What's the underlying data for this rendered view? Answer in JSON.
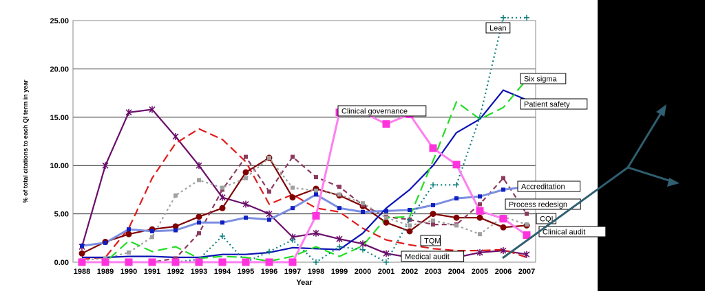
{
  "chart_data": {
    "type": "line",
    "title": "",
    "xlabel": "Year",
    "ylabel": "% of total citations to each QI term in year",
    "x": [
      1988,
      1989,
      1990,
      1991,
      1992,
      1993,
      1994,
      1995,
      1996,
      1997,
      1998,
      1999,
      2000,
      2001,
      2002,
      2003,
      2004,
      2005,
      2006,
      2007
    ],
    "ylim": [
      0,
      25
    ],
    "yticks": [
      "0.00",
      "5.00",
      "10.00",
      "15.00",
      "20.00",
      "25.00"
    ],
    "grid": true,
    "series": [
      {
        "name": "Medical audit",
        "color": "#6a0d6a",
        "dash": "",
        "marker": "star",
        "values": [
          1.6,
          10.0,
          15.5,
          15.8,
          13.0,
          10.0,
          6.7,
          6.0,
          5.0,
          2.6,
          3.0,
          2.4,
          1.9,
          0.9,
          0.5,
          0.5,
          0.5,
          1.0,
          1.2,
          0.8
        ]
      },
      {
        "name": "TQM",
        "color": "#e01a1a",
        "dash": "12,6",
        "marker": "none",
        "values": [
          0.3,
          0.5,
          3.5,
          8.7,
          12.3,
          13.8,
          12.7,
          10.4,
          6.0,
          7.0,
          5.6,
          5.2,
          3.5,
          2.3,
          1.8,
          1.4,
          1.2,
          1.2,
          1.3,
          0.5
        ]
      },
      {
        "name": "Clinical audit",
        "color": "#800000",
        "dash": "",
        "marker": "circle",
        "values": [
          0.9,
          2.1,
          2.9,
          3.4,
          3.7,
          4.7,
          5.6,
          9.3,
          10.8,
          6.7,
          7.6,
          6.9,
          5.8,
          4.1,
          3.2,
          5.0,
          4.6,
          4.6,
          3.6,
          3.8
        ]
      },
      {
        "name": "CQI",
        "color": "#8b3a5e",
        "dash": "7,5",
        "marker": "square-small",
        "values": [
          0.0,
          0.0,
          0.0,
          0.0,
          0.4,
          3.0,
          7.5,
          10.9,
          7.3,
          10.9,
          8.8,
          7.8,
          5.9,
          4.7,
          4.4,
          3.9,
          3.9,
          6.0,
          8.7,
          5.0
        ]
      },
      {
        "name": "Process redesign",
        "color": "#a0a0a0",
        "dash": "3,4",
        "marker": "square-small",
        "values": [
          0.2,
          0.4,
          1.0,
          2.6,
          6.9,
          8.5,
          7.7,
          8.7,
          10.8,
          7.7,
          7.4,
          7.0,
          6.1,
          4.6,
          3.8,
          4.3,
          3.8,
          2.9,
          4.7,
          3.9
        ]
      },
      {
        "name": "Accreditation",
        "color": "#7b8ee0",
        "dash": "",
        "marker": "square",
        "values": [
          1.7,
          2.0,
          3.4,
          3.2,
          3.3,
          4.1,
          4.1,
          4.6,
          4.4,
          5.6,
          7.0,
          5.6,
          5.2,
          5.3,
          5.4,
          5.9,
          6.6,
          6.8,
          7.5,
          7.8
        ]
      },
      {
        "name": "Patient safety",
        "color": "#0a12b4",
        "dash": "",
        "marker": "none",
        "values": [
          0.5,
          0.5,
          0.6,
          0.6,
          0.5,
          0.5,
          0.8,
          0.8,
          1.0,
          1.5,
          1.4,
          1.3,
          3.0,
          5.6,
          7.5,
          10.0,
          13.4,
          14.8,
          17.8,
          16.8
        ]
      },
      {
        "name": "Six sigma",
        "color": "#22dd22",
        "dash": "14,7",
        "marker": "none",
        "values": [
          0.0,
          0.0,
          2.2,
          1.1,
          1.6,
          0.4,
          0.6,
          0.5,
          0.1,
          0.6,
          1.6,
          0.6,
          1.7,
          4.6,
          4.7,
          10.5,
          16.6,
          14.8,
          16.0,
          18.9
        ]
      },
      {
        "name": "Lean",
        "color": "#0f7f7f",
        "dash": "2,4",
        "marker": "plus",
        "values": [
          0.0,
          0.0,
          0.0,
          0.0,
          0.0,
          0.3,
          2.7,
          0.0,
          1.1,
          2.3,
          0.0,
          1.6,
          1.3,
          0.0,
          4.4,
          8.0,
          8.0,
          15.0,
          25.3,
          25.3
        ]
      },
      {
        "name": "Clinical governance",
        "color": "#ff7ef0",
        "dash": "",
        "marker": "square-big",
        "values": [
          0.0,
          0.0,
          0.0,
          0.0,
          0.0,
          0.0,
          0.0,
          0.0,
          0.0,
          0.0,
          4.8,
          15.5,
          15.5,
          14.3,
          15.3,
          11.8,
          10.1,
          5.3,
          4.5,
          2.8
        ]
      }
    ],
    "annotations": [
      {
        "text": "Lean",
        "series": "Lean"
      },
      {
        "text": "Six sigma",
        "series": "Six sigma"
      },
      {
        "text": "Patient safety",
        "series": "Patient safety"
      },
      {
        "text": "Clinical governance",
        "series": "Clinical governance"
      },
      {
        "text": "Accreditation",
        "series": "Accreditation"
      },
      {
        "text": "Process redesign",
        "series": "Process redesign"
      },
      {
        "text": "CQI",
        "series": "CQI"
      },
      {
        "text": "Clinical audit",
        "series": "Clinical audit"
      },
      {
        "text": "TQM",
        "series": "TQM"
      },
      {
        "text": "Medical audit",
        "series": "Medical audit"
      }
    ]
  },
  "colors": {
    "black_panel": "#000000",
    "overlay_arrow": "#2f5f70"
  }
}
